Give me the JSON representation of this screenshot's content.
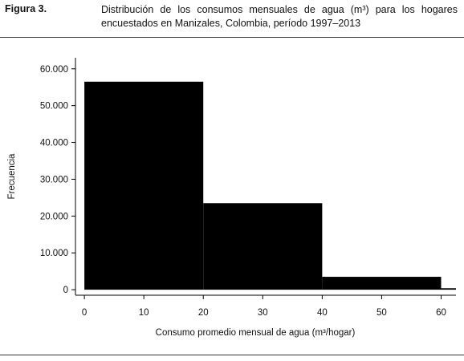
{
  "figure": {
    "label": "Figura 3.",
    "title": "Distribución de los consumos mensuales de agua (m³) para los hogares encuestados en Manizales, Colombia, período 1997–2013"
  },
  "chart_data": {
    "type": "bar",
    "title": "",
    "xlabel": "Consumo promedio mensual de agua (m³/hogar)",
    "ylabel": "Frecuencia",
    "bins": [
      {
        "x0": 0,
        "x1": 20,
        "value": 56500
      },
      {
        "x0": 20,
        "x1": 40,
        "value": 23500
      },
      {
        "x0": 40,
        "x1": 60,
        "value": 3500
      },
      {
        "x0": 60,
        "x1": 62.5,
        "value": 400
      }
    ],
    "xlim": [
      -1.5,
      62.5
    ],
    "ylim": [
      -1500,
      63000
    ],
    "x_ticks": [
      {
        "value": 0,
        "label": "0"
      },
      {
        "value": 10,
        "label": "10"
      },
      {
        "value": 20,
        "label": "20"
      },
      {
        "value": 30,
        "label": "30"
      },
      {
        "value": 40,
        "label": "40"
      },
      {
        "value": 50,
        "label": "50"
      },
      {
        "value": 60,
        "label": "60"
      }
    ],
    "y_ticks": [
      {
        "value": 0,
        "label": "0"
      },
      {
        "value": 10000,
        "label": "10.000"
      },
      {
        "value": 20000,
        "label": "20.000"
      },
      {
        "value": 30000,
        "label": "30.000"
      },
      {
        "value": 40000,
        "label": "40.000"
      },
      {
        "value": 50000,
        "label": "50.000"
      },
      {
        "value": 60000,
        "label": "60.000"
      }
    ],
    "bar_color": "#000000",
    "grid": false
  }
}
